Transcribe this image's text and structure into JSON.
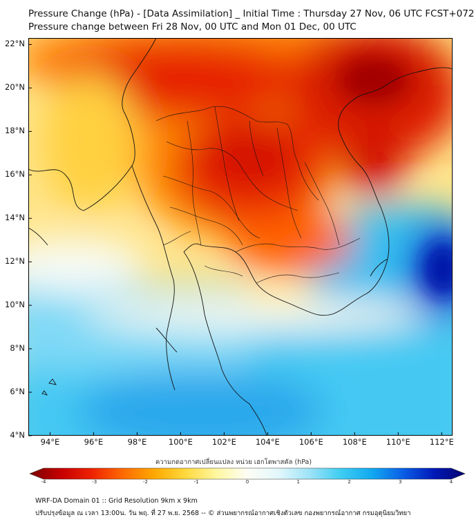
{
  "header": {
    "title": "Pressure Change (hPa) - [Data Assimilation] _ Initial Time : Thursday 27 Nov, 06 UTC FCST+072",
    "subtitle": "Pressure change between Fri 28 Nov, 00 UTC and Mon 01 Dec, 00 UTC"
  },
  "map": {
    "lat_labels": [
      "22°N",
      "20°N",
      "18°N",
      "16°N",
      "14°N",
      "12°N",
      "10°N",
      "8°N",
      "6°N",
      "4°N"
    ],
    "lon_labels": [
      "94°E",
      "96°E",
      "98°E",
      "100°E",
      "102°E",
      "104°E",
      "106°E",
      "108°E",
      "110°E",
      "112°E"
    ],
    "lat_range": [
      4,
      22.3
    ],
    "lon_range": [
      93,
      112.5
    ],
    "fields": [
      {
        "name": "central-high-pressure-rise",
        "lon": 102.5,
        "lat": 16.8,
        "value": -3.5
      },
      {
        "name": "north-vietnam-rise",
        "lon": 108.5,
        "lat": 19.5,
        "value": -3.6
      },
      {
        "name": "northwest-rise",
        "lon": 97,
        "lat": 21,
        "value": -3.0
      },
      {
        "name": "east-cambodia-rise",
        "lon": 105,
        "lat": 13.2,
        "value": -2.6
      },
      {
        "name": "south-china-sea-fall",
        "lon": 112,
        "lat": 11.7,
        "value": 3.5
      }
    ]
  },
  "colorbar": {
    "label": "ความกดอากาศเปลี่ยนแปลง หน่วย เฮกโตพาสคัล (hPa)",
    "ticks": [
      "-4",
      "-3",
      "-2",
      "-1",
      "0",
      "1",
      "2",
      "3",
      "4"
    ],
    "range": [
      -4,
      4
    ],
    "colors": [
      "#7a0000",
      "#c60000",
      "#ee2200",
      "#ff6a00",
      "#ffa800",
      "#ffd83c",
      "#fff7a0",
      "#fdfdf5",
      "#e2f7fb",
      "#9ee3f7",
      "#3ecdf2",
      "#12a9f0",
      "#0a5fe6",
      "#0018b8",
      "#04046e"
    ]
  },
  "footer": {
    "line1": "WRF-DA Domain 01 :: Grid Resolution 9km x 9km",
    "line2": "ปรับปรุงข้อมูล ณ เวลา 13:00น. วัน พฤ. ที่ 27 พ.ย. 2568 -- © ส่วนพยากรณ์อากาศเชิงตัวเลข กองพยากรณ์อากาศ กรมอุตุนิยมวิทยา"
  }
}
